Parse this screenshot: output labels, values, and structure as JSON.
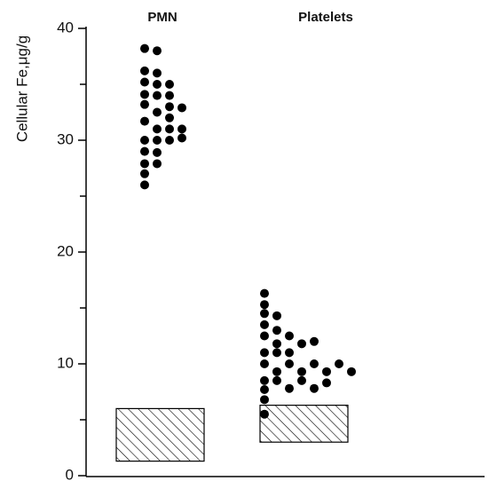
{
  "chart_data": {
    "type": "dot",
    "y_label": "Cellular Fe,μg/g",
    "categories": [
      "PMN",
      "Platelets"
    ],
    "values": [
      [
        38.2,
        36.2,
        35.2,
        34.1,
        33.2,
        32.5,
        31.7,
        31,
        30,
        29,
        27.9,
        27,
        26,
        38,
        36,
        35,
        34,
        33,
        32,
        31,
        30,
        28.9,
        27.9,
        35,
        34,
        32.9,
        31,
        30,
        30.2
      ],
      [
        16.3,
        15.3,
        14.5,
        13.5,
        12.5,
        11.8,
        11,
        10,
        9.3,
        8.5,
        7.7,
        6.8,
        5.5,
        14.3,
        12.5,
        11.8,
        11,
        10,
        9.3,
        8.5,
        7.8,
        13,
        12,
        11,
        10,
        9.3,
        8.5,
        7.8,
        10,
        9.3,
        8.3
      ]
    ],
    "ranges": [
      {
        "low": 1.3,
        "high": 6
      },
      {
        "low": 3,
        "high": 6.3
      }
    ],
    "color": "#000000",
    "ylim": [
      0,
      40
    ],
    "yticks": [
      0,
      10,
      20,
      30,
      40
    ],
    "minor_yticks": [
      5,
      15,
      25,
      35
    ]
  }
}
